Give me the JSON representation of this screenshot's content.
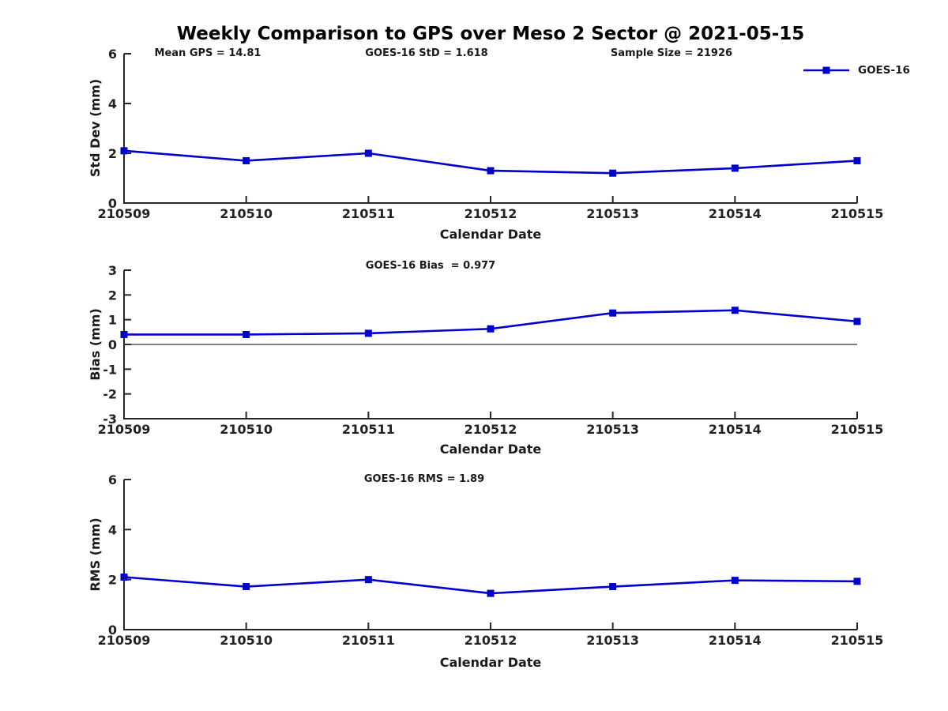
{
  "figure": {
    "title": "Weekly Comparison to GPS over Meso 2 Sector @ 2021-05-15",
    "background": "#ffffff",
    "axis_color": "#262626"
  },
  "chart_data": [
    {
      "type": "line",
      "panel": "std-dev",
      "categories": [
        "210509",
        "210510",
        "210511",
        "210512",
        "210513",
        "210514",
        "210515"
      ],
      "series": [
        {
          "name": "GOES-16",
          "color": "#0000CC",
          "marker": "square",
          "values": [
            2.1,
            1.7,
            2.0,
            1.3,
            1.2,
            1.4,
            1.7
          ]
        }
      ],
      "annotations": [
        "Mean GPS = 14.81",
        "GOES-16 StD = 1.618",
        "Sample Size = 21926"
      ],
      "xlabel": "Calendar Date",
      "ylabel": "Std Dev (mm)",
      "ylim": [
        0,
        6
      ],
      "yticks": [
        0,
        2,
        4,
        6
      ],
      "grid": false,
      "zero_line": false,
      "legend": [
        "GOES-16"
      ],
      "legend_position": "top-right"
    },
    {
      "type": "line",
      "panel": "bias",
      "categories": [
        "210509",
        "210510",
        "210511",
        "210512",
        "210513",
        "210514",
        "210515"
      ],
      "series": [
        {
          "name": "GOES-16",
          "color": "#0000CC",
          "marker": "square",
          "values": [
            0.4,
            0.4,
            0.45,
            0.63,
            1.27,
            1.38,
            0.93
          ]
        }
      ],
      "annotation": "GOES-16 Bias  = 0.977",
      "xlabel": "Calendar Date",
      "ylabel": "Bias (mm)",
      "ylim": [
        -3,
        3
      ],
      "yticks": [
        -3,
        -2,
        -1,
        0,
        1,
        2,
        3
      ],
      "grid": false,
      "zero_line": true
    },
    {
      "type": "line",
      "panel": "rms",
      "categories": [
        "210509",
        "210510",
        "210511",
        "210512",
        "210513",
        "210514",
        "210515"
      ],
      "series": [
        {
          "name": "GOES-16",
          "color": "#0000CC",
          "marker": "square",
          "values": [
            2.1,
            1.72,
            2.0,
            1.45,
            1.72,
            1.97,
            1.93
          ]
        }
      ],
      "annotation": "GOES-16 RMS = 1.89",
      "xlabel": "Calendar Date",
      "ylabel": "RMS (mm)",
      "ylim": [
        0,
        6
      ],
      "yticks": [
        0,
        2,
        4,
        6
      ],
      "grid": false,
      "zero_line": false
    }
  ]
}
